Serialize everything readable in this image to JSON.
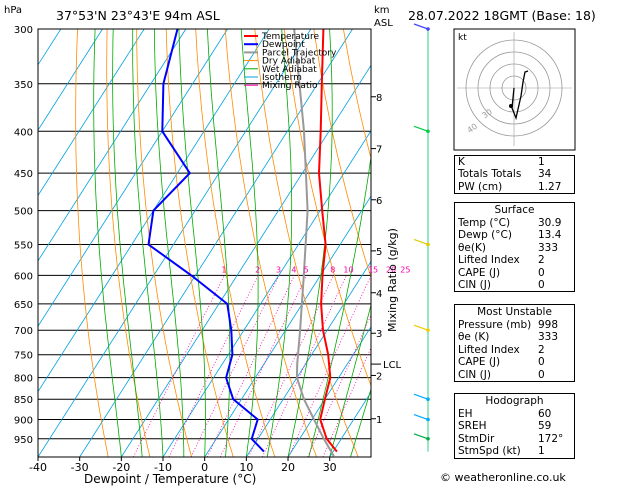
{
  "header": {
    "location": "37°53'N  23°43'E  94m  ASL",
    "datetime": "28.07.2022  18GMT  (Base: 18)",
    "hpa_label": "hPa",
    "km_label": "km",
    "asl_label": "ASL"
  },
  "hodograph": {
    "label": "kt",
    "ring_labels": [
      "40",
      "30"
    ]
  },
  "legend": [
    {
      "name": "Temperature",
      "color": "#ff0000"
    },
    {
      "name": "Dewpoint",
      "color": "#0000ff"
    },
    {
      "name": "Parcel Trajectory",
      "color": "#999999"
    },
    {
      "name": "Dry Adiabat",
      "color": "#ff8c00"
    },
    {
      "name": "Wet Adiabat",
      "color": "#00aa00"
    },
    {
      "name": "Isotherm",
      "color": "#00a0e0"
    },
    {
      "name": "Mixing Ratio",
      "color": "#ff00aa"
    }
  ],
  "indices": {
    "rows": [
      [
        "K",
        "1"
      ],
      [
        "Totals Totals",
        "34"
      ],
      [
        "PW (cm)",
        "1.27"
      ]
    ]
  },
  "surface": {
    "title": "Surface",
    "rows": [
      [
        "Temp (°C)",
        "30.9"
      ],
      [
        "Dewp (°C)",
        "13.4"
      ],
      [
        "θe(K)",
        "333"
      ],
      [
        "Lifted Index",
        "2"
      ],
      [
        "CAPE (J)",
        "0"
      ],
      [
        "CIN (J)",
        "0"
      ]
    ]
  },
  "most_unstable": {
    "title": "Most Unstable",
    "rows": [
      [
        "Pressure (mb)",
        "998"
      ],
      [
        "θe (K)",
        "333"
      ],
      [
        "Lifted Index",
        "2"
      ],
      [
        "CAPE (J)",
        "0"
      ],
      [
        "CIN (J)",
        "0"
      ]
    ]
  },
  "hodograph_table": {
    "title": "Hodograph",
    "rows": [
      [
        "EH",
        "60"
      ],
      [
        "SREH",
        "59"
      ],
      [
        "StmDir",
        "172°"
      ],
      [
        "StmSpd (kt)",
        "1"
      ]
    ]
  },
  "footer": {
    "copyright": "© weatheronline.co.uk"
  },
  "chart_data": {
    "type": "line",
    "xlabel": "Dewpoint / Temperature (°C)",
    "ylabel": "Mixing Ratio (g/kg)",
    "xlim": [
      -40,
      35
    ],
    "pressure_levels": [
      300,
      350,
      400,
      450,
      500,
      550,
      600,
      650,
      700,
      750,
      800,
      850,
      900,
      950
    ],
    "x_ticks": [
      -40,
      -30,
      -20,
      -10,
      0,
      10,
      20,
      30
    ],
    "km_ticks": [
      {
        "km": "8",
        "p": 363
      },
      {
        "km": "7",
        "p": 420
      },
      {
        "km": "6",
        "p": 485
      },
      {
        "km": "5",
        "p": 560
      },
      {
        "km": "4",
        "p": 630
      },
      {
        "km": "3",
        "p": 706
      },
      {
        "km": "2",
        "p": 795
      },
      {
        "km": "1",
        "p": 898
      }
    ],
    "lcl": {
      "label": "LCL",
      "p": 770
    },
    "mixing_ratio_labels": [
      "1",
      "2",
      "3",
      "4",
      "5",
      "8",
      "10",
      "15",
      "20",
      "25"
    ],
    "series": [
      {
        "name": "Temperature",
        "p": [
          985,
          950,
          900,
          850,
          800,
          750,
          700,
          650,
          600,
          550,
          500,
          450,
          400,
          350,
          300
        ],
        "t": [
          30.9,
          26.5,
          22.0,
          20.0,
          18.0,
          14.0,
          9.0,
          4.5,
          0.5,
          -3.5,
          -9.5,
          -16.0,
          -22.0,
          -29.0,
          -37.0
        ]
      },
      {
        "name": "Dewpoint",
        "p": [
          985,
          950,
          900,
          850,
          800,
          750,
          700,
          650,
          600,
          550,
          500,
          450,
          400,
          350,
          300
        ],
        "t": [
          13.4,
          8.5,
          7.0,
          -2.0,
          -7.0,
          -9.0,
          -13.0,
          -18.0,
          -31.0,
          -46.0,
          -50.0,
          -47.0,
          -60.0,
          -67.0,
          -72.0
        ]
      },
      {
        "name": "Parcel Trajectory",
        "p": [
          998,
          950,
          900,
          850,
          800,
          770,
          700,
          600,
          500,
          400,
          300
        ],
        "t": [
          30.9,
          25.8,
          20.5,
          15.0,
          10.0,
          8.0,
          3.5,
          -4.0,
          -13.0,
          -26.0,
          -44.0
        ]
      }
    ]
  }
}
